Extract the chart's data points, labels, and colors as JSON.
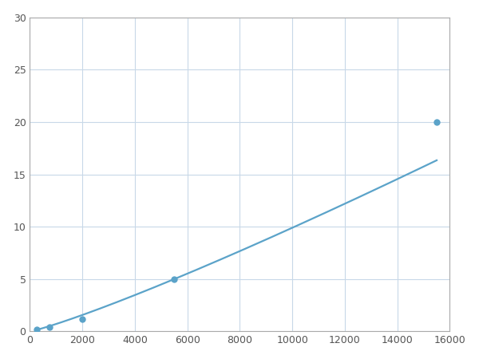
{
  "x_points": [
    250,
    750,
    2000,
    5500,
    15500
  ],
  "y_points": [
    0.2,
    0.4,
    1.2,
    5.0,
    20.0
  ],
  "line_color": "#5ba3c9",
  "marker_color": "#5ba3c9",
  "marker_size": 6,
  "line_width": 1.6,
  "xlim": [
    0,
    16000
  ],
  "ylim": [
    0,
    30
  ],
  "xticks": [
    0,
    2000,
    4000,
    6000,
    8000,
    10000,
    12000,
    14000,
    16000
  ],
  "yticks": [
    0,
    5,
    10,
    15,
    20,
    25,
    30
  ],
  "grid_color": "#c8d8e8",
  "background_color": "#ffffff",
  "spine_color": "#aaaaaa"
}
